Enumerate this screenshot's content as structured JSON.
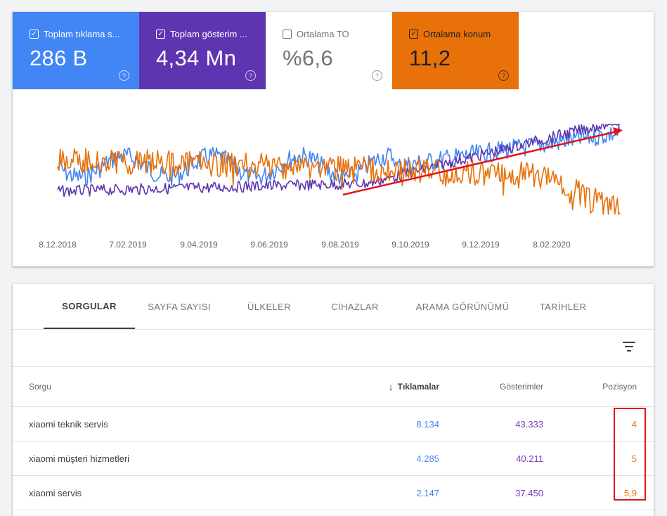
{
  "metrics": [
    {
      "label": "Toplam tıklama s...",
      "value": "286 B",
      "checked": true,
      "color": "#4285f4"
    },
    {
      "label": "Toplam gösterim ...",
      "value": "4,34 Mn",
      "checked": true,
      "color": "#5e35b1"
    },
    {
      "label": "Ortalama TO",
      "value": "%6,6",
      "checked": false,
      "color": "#ffffff"
    },
    {
      "label": "Ortalama konum",
      "value": "11,2",
      "checked": true,
      "color": "#e8710a"
    }
  ],
  "chart_data": {
    "type": "line",
    "x_tick_labels": [
      "8.12.2018",
      "7.02.2019",
      "9.04.2019",
      "9.06.2019",
      "9.08.2019",
      "9.10.2019",
      "9.12.2019",
      "8.02.2020"
    ],
    "series": [
      {
        "color": "#4285f4",
        "trend": "flat then rising late 2019"
      },
      {
        "color": "#5e35b1",
        "trend": "low then rising sharply from Sep 2019"
      },
      {
        "color": "#e8710a",
        "trend": "high flat then declining in 2020"
      }
    ],
    "annotation": {
      "type": "arrow",
      "color": "#e0131a",
      "meaning": "upward trend"
    },
    "grid": false
  },
  "tabs": [
    "SORGULAR",
    "SAYFA SAYISI",
    "ÜLKELER",
    "CİHAZLAR",
    "ARAMA GÖRÜNÜMÜ",
    "TARİHLER"
  ],
  "table": {
    "headers": {
      "query": "Sorgu",
      "clicks": "Tıklamalar",
      "impressions": "Gösterimler",
      "position": "Pozisyon"
    },
    "rows": [
      {
        "query": "xiaomi teknik servis",
        "clicks": "8.134",
        "impressions": "43.333",
        "position": "4"
      },
      {
        "query": "xiaomi müşteri hizmetleri",
        "clicks": "4.285",
        "impressions": "40.211",
        "position": "5"
      },
      {
        "query": "xiaomi servis",
        "clicks": "2.147",
        "impressions": "37.450",
        "position": "5,9"
      }
    ]
  },
  "icons": {
    "checkbox": "checkbox-icon",
    "help": "help-icon",
    "sort": "arrow-down-icon",
    "filter": "filter-icon"
  }
}
